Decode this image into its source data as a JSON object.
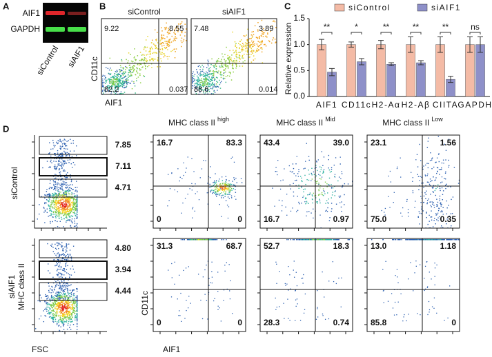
{
  "panel_labels": [
    "A",
    "B",
    "C",
    "D"
  ],
  "blot": {
    "rows": [
      "AIF1",
      "GAPDH"
    ],
    "lanes": [
      "siControl",
      "siAIF1"
    ]
  },
  "flow_b": {
    "titles": [
      "siControl",
      "siAIF1"
    ],
    "y_label": "CD11c",
    "x_label": "AIF1",
    "quadrants": [
      [
        "9.22",
        "8.55",
        "82.2",
        "0.037"
      ],
      [
        "7.48",
        "3.89",
        "88.6",
        "0.014"
      ]
    ]
  },
  "chart_data": {
    "type": "bar",
    "y_label": "Relative expression",
    "categories": [
      "AIF1",
      "CD11c",
      "H2-Aα",
      "H2-Aβ",
      "CIITA",
      "GAPDH"
    ],
    "series": [
      {
        "name": "siControl",
        "color": "#f4bba6",
        "values": [
          1.0,
          1.0,
          1.0,
          1.0,
          1.0,
          1.0
        ],
        "errors": [
          0.1,
          0.05,
          0.08,
          0.15,
          0.15,
          0.15
        ]
      },
      {
        "name": "siAIF1",
        "color": "#8e90c9",
        "values": [
          0.47,
          0.67,
          0.62,
          0.65,
          0.33,
          1.0
        ],
        "errors": [
          0.07,
          0.06,
          0.03,
          0.04,
          0.06,
          0.15
        ]
      }
    ],
    "significance": [
      "**",
      "*",
      "**",
      "**",
      "**",
      "ns"
    ],
    "ylim": [
      0,
      1.5
    ],
    "yticks": [
      {
        "value": 0,
        "label": "0.0"
      },
      0.5,
      {
        "value": 1,
        "label": "1.0"
      },
      1.5
    ]
  },
  "flow_d": {
    "columns": [
      {
        "title": "MHC class II",
        "sup": "high"
      },
      {
        "title": "MHC class II",
        "sup": "Mid"
      },
      {
        "title": "MHC class II",
        "sup": "Low"
      }
    ],
    "rows": [
      {
        "labels": [
          "siControl"
        ],
        "gates": [
          "7.85",
          "7.11",
          "4.71"
        ],
        "quadrants": [
          [
            "16.7",
            "83.3",
            "0",
            "0"
          ],
          [
            "43.4",
            "39.0",
            "16.7",
            "0.97"
          ],
          [
            "23.1",
            "1.56",
            "75.0",
            "0.35"
          ]
        ]
      },
      {
        "labels": [
          "siAIF1",
          "MHC class II"
        ],
        "gates": [
          "4.80",
          "3.94",
          "4.44"
        ],
        "quadrants": [
          [
            "31.3",
            "68.7",
            "0",
            "0"
          ],
          [
            "52.7",
            "18.3",
            "28.3",
            "0.74"
          ],
          [
            "13.0",
            "1.18",
            "85.8",
            "0"
          ]
        ]
      }
    ],
    "gate_x_label": "FSC",
    "y_label": "CD11c",
    "x_label": "AIF1"
  }
}
